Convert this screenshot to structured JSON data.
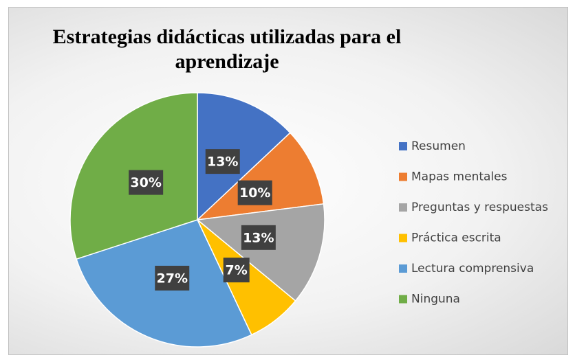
{
  "chart_data": {
    "type": "pie",
    "title": "Estrategias didácticas utilizadas para el aprendizaje",
    "categories": [
      "Resumen",
      "Mapas mentales",
      "Preguntas y respuestas",
      "Práctica escrita",
      "Lectura comprensiva",
      "Ninguna"
    ],
    "values": [
      13,
      10,
      13,
      7,
      27,
      30
    ],
    "value_labels": [
      "13%",
      "10%",
      "13%",
      "7%",
      "27%",
      "30%"
    ],
    "colors": [
      "#4472c4",
      "#ed7d31",
      "#a5a5a5",
      "#ffc000",
      "#5b9bd5",
      "#70ad47"
    ],
    "legend": "right"
  }
}
